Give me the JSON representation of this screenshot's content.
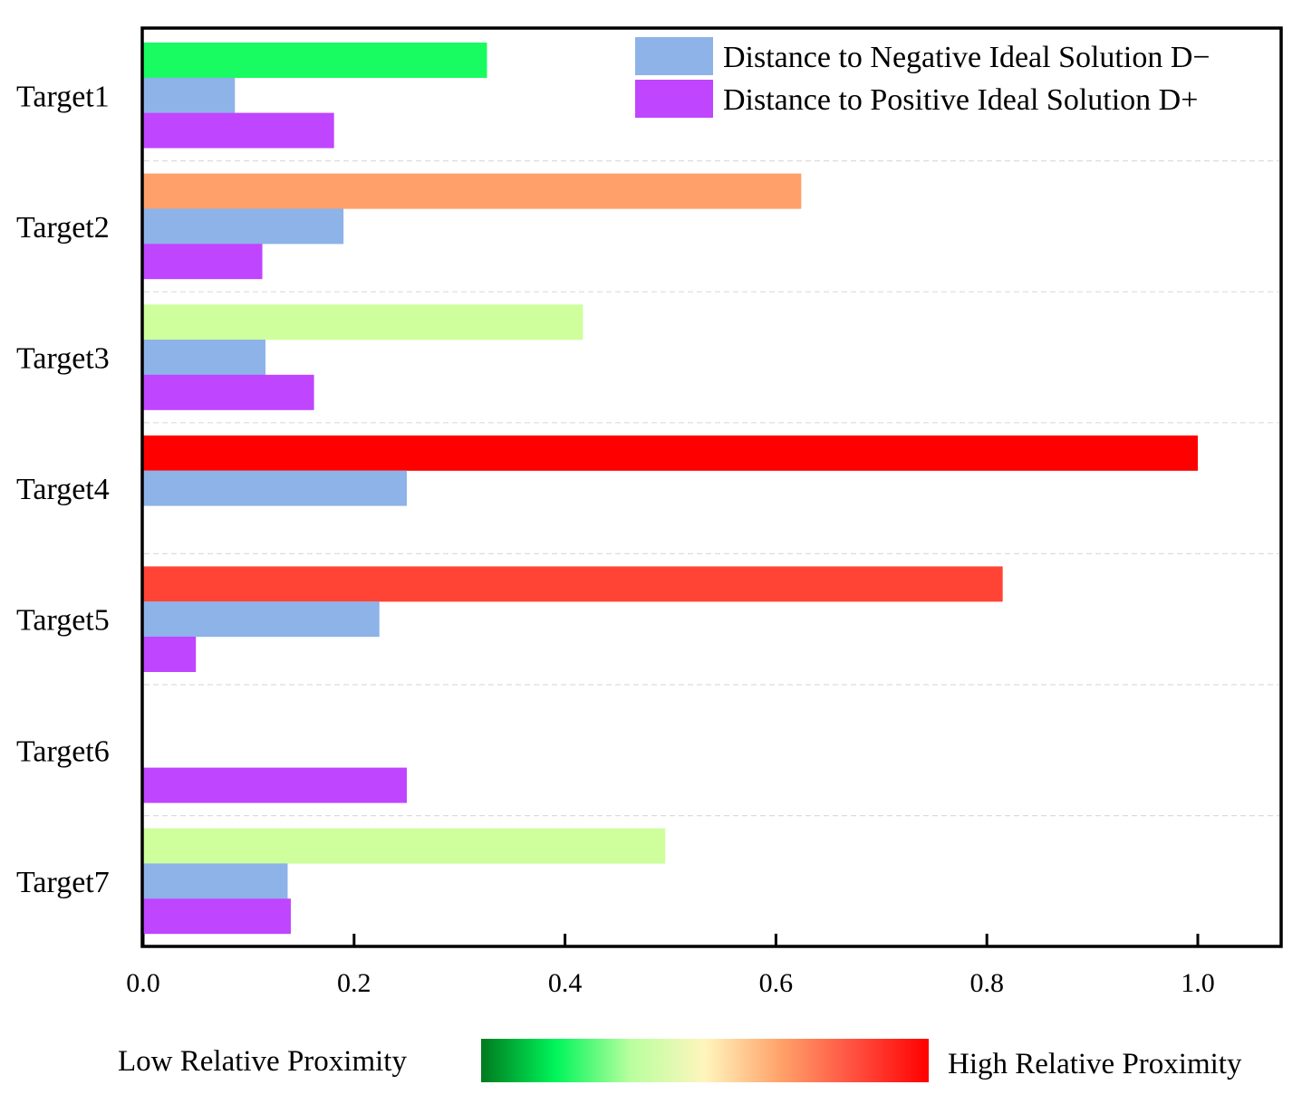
{
  "chart_data": {
    "type": "bar",
    "orientation": "horizontal",
    "categories": [
      "Target1",
      "Target2",
      "Target3",
      "Target4",
      "Target5",
      "Target6",
      "Target7"
    ],
    "series": [
      {
        "name": "Relative Proximity",
        "values": [
          0.326,
          0.624,
          0.417,
          1.0,
          0.815,
          0.0,
          0.495
        ],
        "color_by": "colorbar",
        "in_legend": false
      },
      {
        "name": "Distance to Negative Ideal Solution D−",
        "values": [
          0.087,
          0.19,
          0.116,
          0.25,
          0.224,
          0.0,
          0.137
        ],
        "color": "#8db3e8"
      },
      {
        "name": "Distance to Positive Ideal Solution D+",
        "values": [
          0.181,
          0.113,
          0.162,
          0.0,
          0.05,
          0.25,
          0.14
        ],
        "color": "#bf45ff"
      }
    ],
    "bar_colors": {
      "Relative Proximity": [
        "#18fb61",
        "#ffa06a",
        "#ceff9c",
        "#ff0000",
        "#ff4436",
        "#ffffff",
        "#ceff9c"
      ]
    },
    "xlim": [
      0.0,
      1.08
    ],
    "xticks": [
      0.0,
      0.2,
      0.4,
      0.6,
      0.8,
      1.0
    ],
    "xtick_labels": [
      "0.0",
      "0.2",
      "0.4",
      "0.6",
      "0.8",
      "1.0"
    ],
    "title": "",
    "xlabel": "",
    "ylabel": "",
    "grid": "horizontal dashed separators",
    "legend": {
      "placement": "top-right",
      "entries": [
        {
          "label": "Distance to Negative Ideal Solution D−",
          "color": "#8db3e8"
        },
        {
          "label": "Distance to Positive Ideal Solution D+",
          "color": "#bf45ff"
        }
      ]
    },
    "colorbar": {
      "low_label": "Low Relative Proximity",
      "high_label": "High Relative Proximity",
      "stops": [
        "#007a1e",
        "#00f55a",
        "#b8ff9e",
        "#fff5bd",
        "#ffa36b",
        "#ff5040",
        "#ff0000"
      ]
    }
  }
}
